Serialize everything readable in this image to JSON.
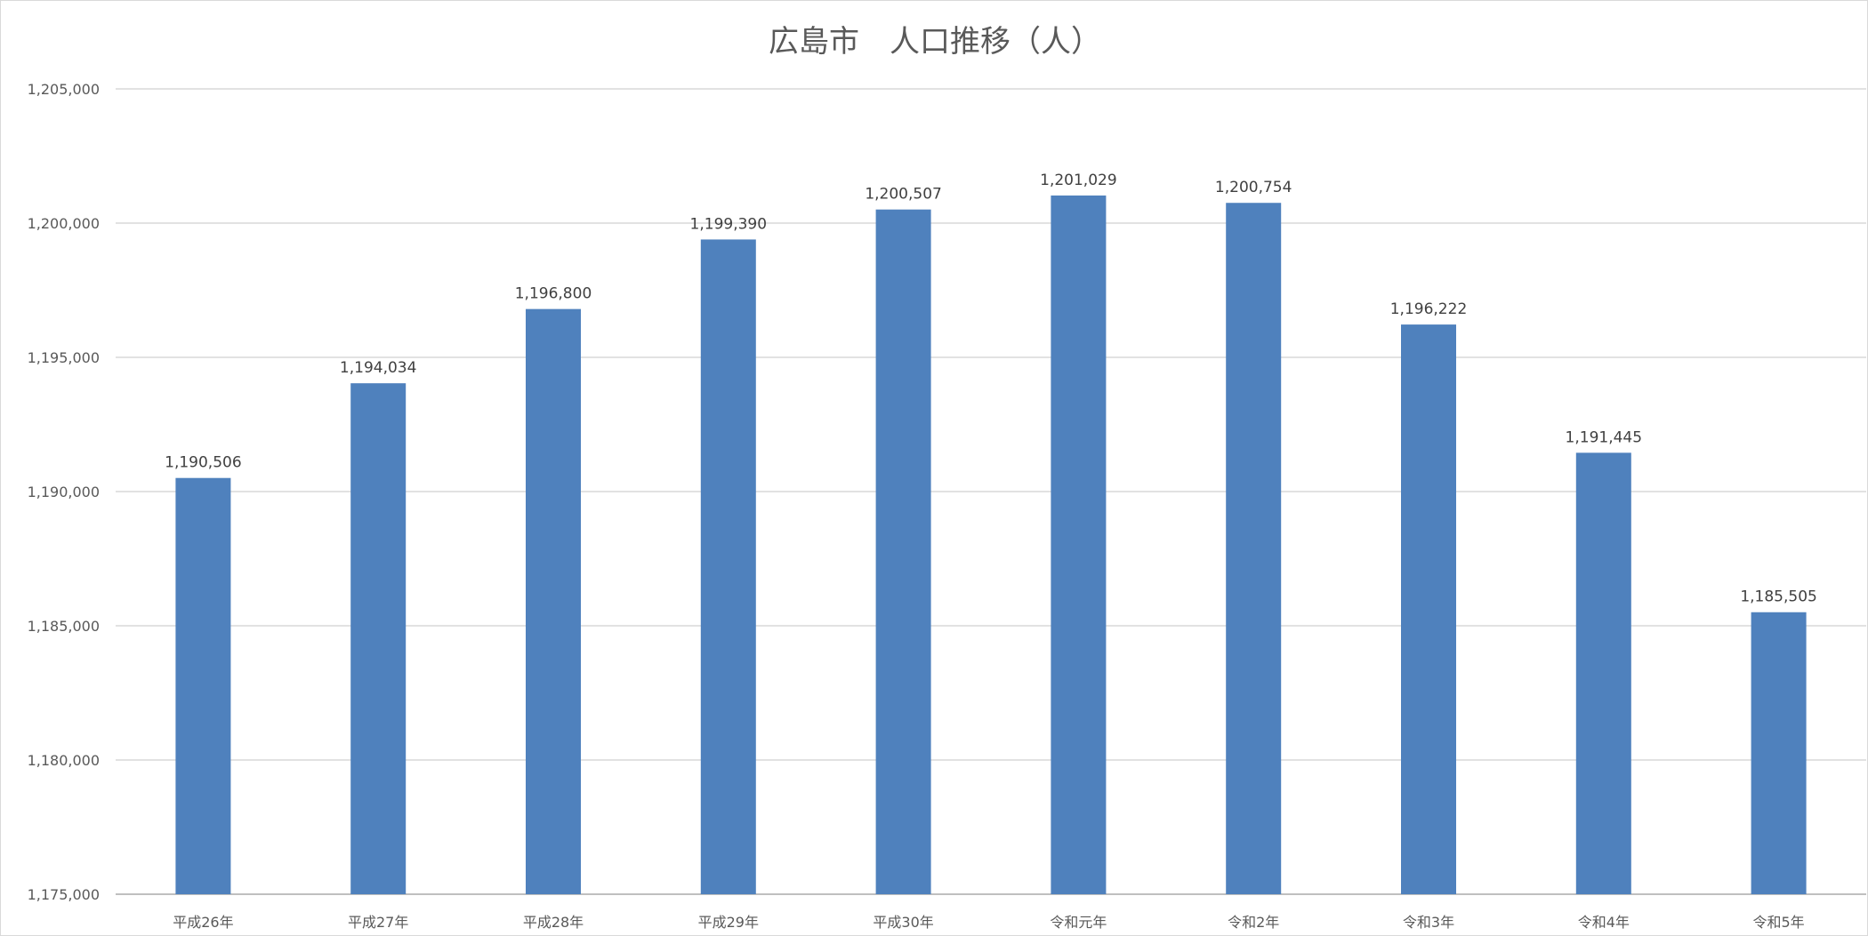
{
  "chart_data": {
    "type": "bar",
    "title": "広島市　人口推移（人）",
    "categories": [
      "平成26年",
      "平成27年",
      "平成28年",
      "平成29年",
      "平成30年",
      "令和元年",
      "令和2年",
      "令和3年",
      "令和4年",
      "令和5年"
    ],
    "values": [
      1190506,
      1194034,
      1196800,
      1199390,
      1200507,
      1201029,
      1200754,
      1196222,
      1191445,
      1185505
    ],
    "data_labels": [
      "1,190,506",
      "1,194,034",
      "1,196,800",
      "1,199,390",
      "1,200,507",
      "1,201,029",
      "1,200,754",
      "1,196,222",
      "1,191,445",
      "1,185,505"
    ],
    "ylim": [
      1175000,
      1205000
    ],
    "yticks": [
      1175000,
      1180000,
      1185000,
      1190000,
      1195000,
      1200000,
      1205000
    ],
    "ytick_labels": [
      "1,175,000",
      "1,180,000",
      "1,185,000",
      "1,190,000",
      "1,195,000",
      "1,200,000",
      "1,205,000"
    ],
    "xlabel": "",
    "ylabel": "",
    "grid": true,
    "legend": "none",
    "bar_color": "#4f81bd"
  }
}
